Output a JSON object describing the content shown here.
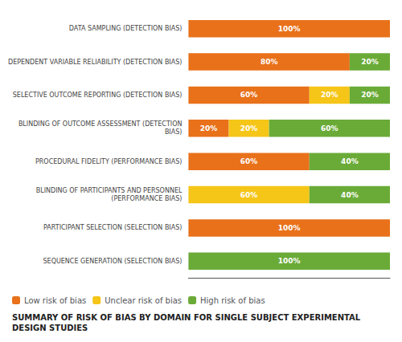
{
  "chart_data": {
    "type": "bar",
    "title": "SUMMARY OF RISK OF BIAS BY DOMAIN FOR SINGLE SUBJECT EXPERIMENTAL\nDESIGN STUDIES",
    "orientation": "horizontal",
    "stacked": true,
    "data_labels": true,
    "grid": false,
    "legend": "lower left",
    "tick_labels": "y",
    "xlim": [
      0,
      100
    ],
    "categories": [
      "DATA SAMPLING (DETECTION BIAS)",
      "DEPENDENT VARIABLE RELIABILITY (DETECTION BIAS)",
      "SELECTIVE OUTCOME REPORTING (DETECTION BIAS)",
      "BLINDING OF OUTCOME ASSESSMENT (DETECTION\nBIAS)",
      "PROCEDURAL FIDELITY (PERFORMANCE BIAS)",
      "BLINDING OF PARTICIPANTS AND PERSONNEL\n(PERFORMANCE BIAS)",
      "PARTICIPANT SELECTION (SELECTION BIAS)",
      "SEQUENCE GENERATION (SELECTION BIAS)"
    ],
    "series": [
      {
        "name": "Low risk of bias",
        "color": "#E8711A",
        "values": [
          100,
          80,
          60,
          20,
          60,
          0,
          100,
          0
        ],
        "value_labels": [
          "100%",
          "80%",
          "60%",
          "20%",
          "60%",
          null,
          "100%",
          null
        ]
      },
      {
        "name": "Unclear risk of bias",
        "color": "#F5C518",
        "values": [
          0,
          0,
          20,
          20,
          0,
          60,
          0,
          0
        ],
        "value_labels": [
          null,
          null,
          "20%",
          "20%",
          null,
          "60%",
          null,
          null
        ]
      },
      {
        "name": "High risk of bias",
        "color": "#6AAB38",
        "values": [
          0,
          20,
          20,
          60,
          40,
          40,
          0,
          100
        ],
        "value_labels": [
          null,
          "20%",
          "20%",
          "60%",
          "40%",
          "40%",
          null,
          "100%"
        ]
      }
    ]
  }
}
